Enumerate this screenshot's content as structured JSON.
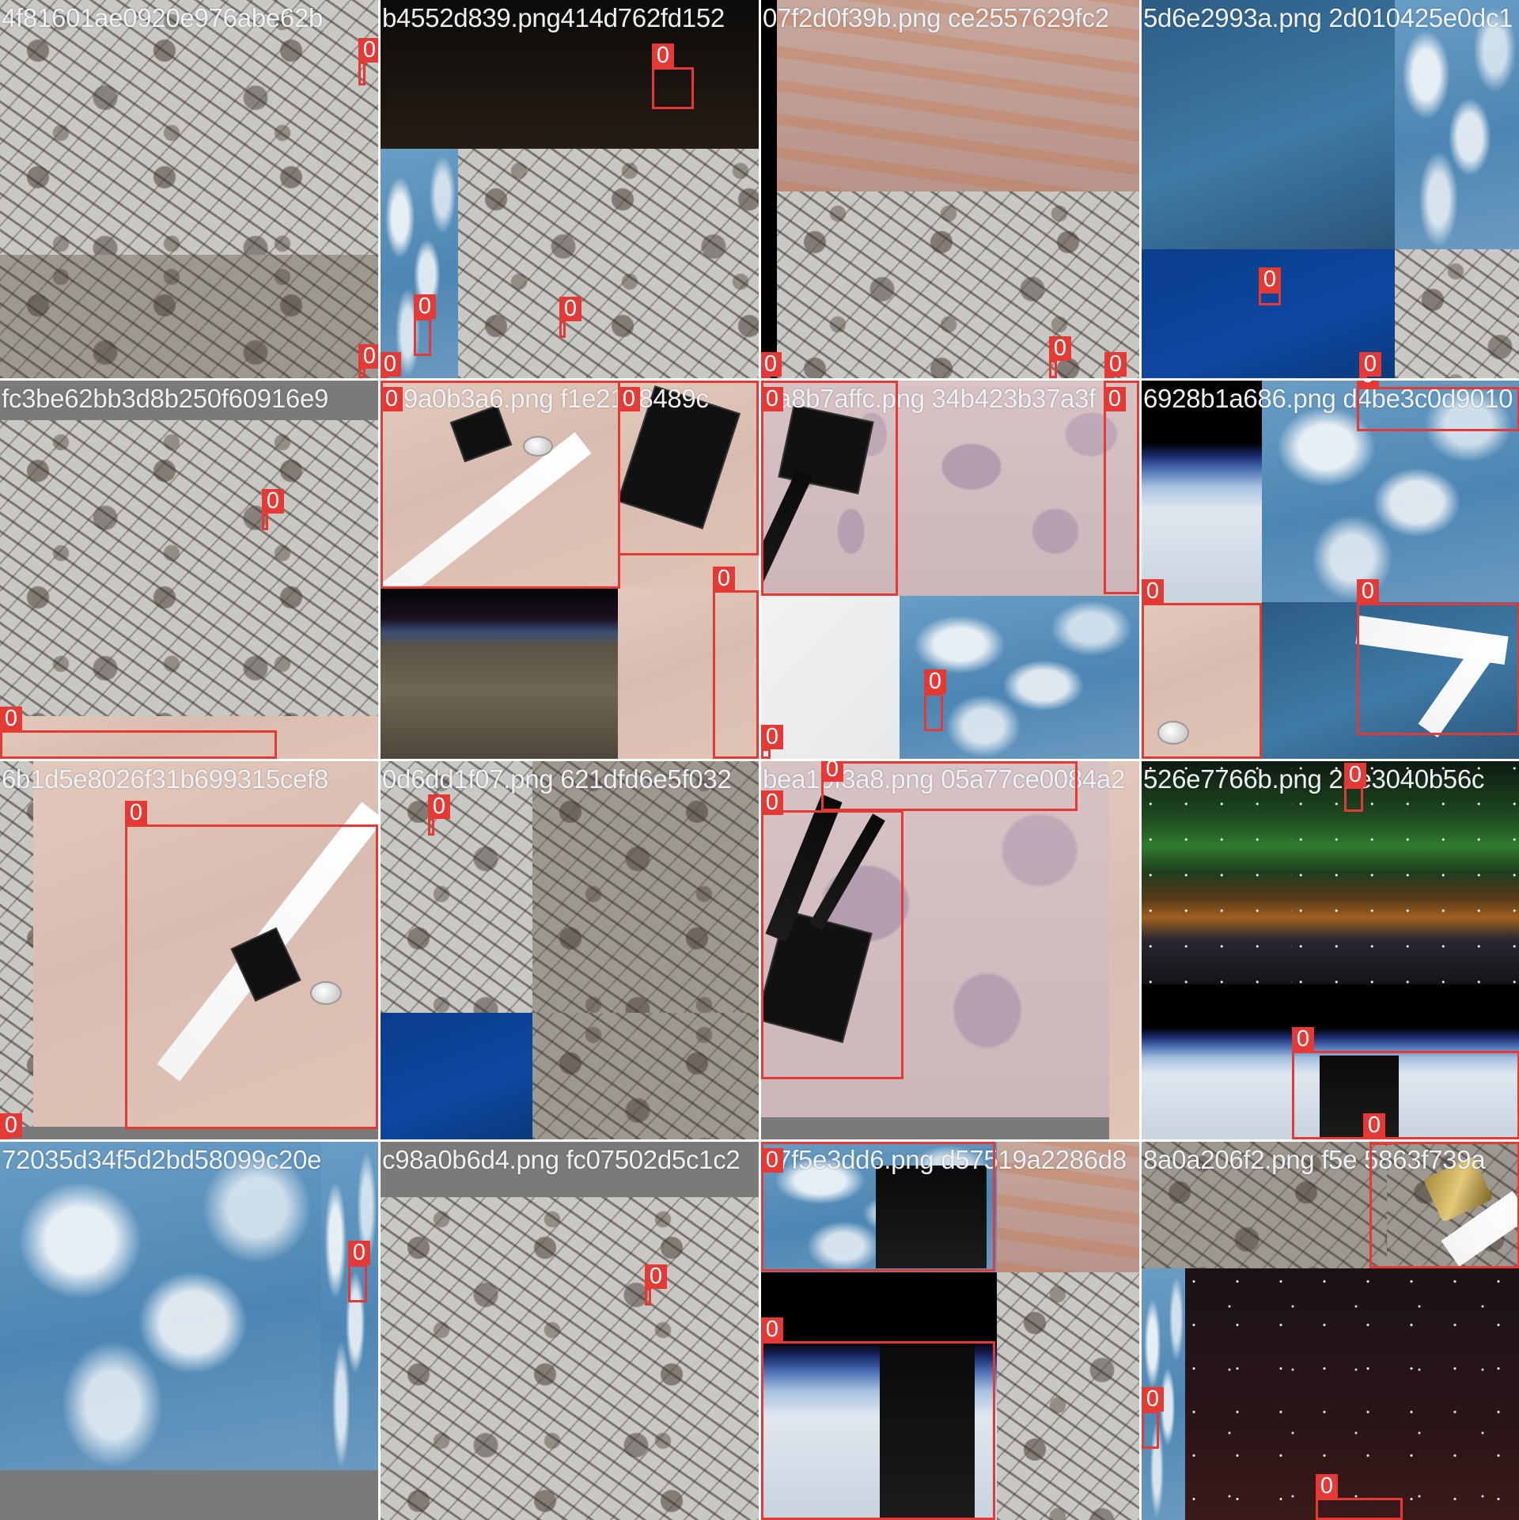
{
  "grid": {
    "cells": [
      {
        "id": "cell-1",
        "caption": "4f81601ae0920e976abe62b",
        "box_labels": [
          "0",
          "0"
        ]
      },
      {
        "id": "cell-2",
        "caption": "b4552d839.png414d762fd152",
        "box_labels": [
          "0",
          "0",
          "0",
          "0"
        ]
      },
      {
        "id": "cell-3",
        "caption": "07f2d0f39b.png ce2557629fc2",
        "box_labels": [
          "0",
          "0",
          "0"
        ]
      },
      {
        "id": "cell-4",
        "caption": "5d6e2993a.png 2d010425e0dc1",
        "box_labels": [
          "0",
          "0"
        ]
      },
      {
        "id": "cell-5",
        "caption": "fc3be62bb3d8b250f60916e9",
        "box_labels": [
          "0",
          "0"
        ]
      },
      {
        "id": "cell-6",
        "caption": "f29a0b3a6.png f1e21b8489c",
        "box_labels": [
          "0",
          "0",
          "0"
        ]
      },
      {
        "id": "cell-7",
        "caption": "5a8b7affc.png 34b423b37a3f",
        "box_labels": [
          "0",
          "0",
          "0",
          "0"
        ]
      },
      {
        "id": "cell-8",
        "caption": "6928b1a686.png d4be3c0d9010",
        "box_labels": [
          "0",
          "0",
          "0"
        ]
      },
      {
        "id": "cell-9",
        "caption": "6b1d5e8026f31b699315cef8",
        "box_labels": [
          "0",
          "0"
        ]
      },
      {
        "id": "cell-10",
        "caption": "0d6dd1f07.png 621dfd6e5f032",
        "box_labels": [
          "0"
        ]
      },
      {
        "id": "cell-11",
        "caption": "bea19f3a8.png 05a77ce0084a2",
        "box_labels": [
          "0",
          "0"
        ]
      },
      {
        "id": "cell-12",
        "caption": "526e7766b.png 2ae3040b56c",
        "box_labels": [
          "0",
          "0",
          "0"
        ]
      },
      {
        "id": "cell-13",
        "caption": "72035d34f5d2bd58099c20e",
        "box_labels": [
          "0"
        ]
      },
      {
        "id": "cell-14",
        "caption": "c98a0b6d4.png fc07502d5c1c2",
        "box_labels": [
          "0"
        ]
      },
      {
        "id": "cell-15",
        "caption": "a7f5e3dd6.png d57519a2286d8",
        "box_labels": [
          "0",
          "0"
        ]
      },
      {
        "id": "cell-16",
        "caption": "8a0a206f2.png f5e 5863f739a",
        "box_labels": [
          "0",
          "0",
          "0"
        ]
      }
    ]
  },
  "colors": {
    "box": "#e53935",
    "caption_text": "#eef2f6",
    "padding_grey": "#7a7a7a"
  }
}
